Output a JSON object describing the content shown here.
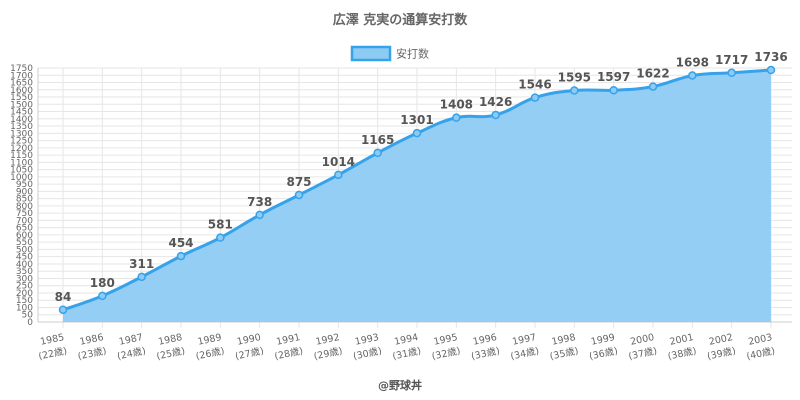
{
  "chart_data": {
    "type": "area",
    "title": "広澤 克実の通算安打数",
    "legend": {
      "position": "top",
      "label": "安打数"
    },
    "series": [
      {
        "name": "安打数",
        "values": [
          84,
          180,
          311,
          454,
          581,
          738,
          875,
          1014,
          1165,
          1301,
          1408,
          1426,
          1546,
          1595,
          1597,
          1622,
          1698,
          1717,
          1736
        ]
      }
    ],
    "categories": [
      "1985",
      "1986",
      "1987",
      "1988",
      "1989",
      "1990",
      "1991",
      "1992",
      "1993",
      "1994",
      "1995",
      "1996",
      "1997",
      "1998",
      "1999",
      "2000",
      "2001",
      "2002",
      "2003"
    ],
    "category_sublabels": [
      "(22歳)",
      "(23歳)",
      "(24歳)",
      "(25歳)",
      "(26歳)",
      "(27歳)",
      "(28歳)",
      "(29歳)",
      "(30歳)",
      "(31歳)",
      "(32歳)",
      "(33歳)",
      "(34歳)",
      "(35歳)",
      "(36歳)",
      "(37歳)",
      "(38歳)",
      "(39歳)",
      "(40歳)"
    ],
    "ylim": [
      0,
      1750
    ],
    "ytick_step": 50,
    "grid": true,
    "colors": {
      "line": "#36a2eb",
      "fill": "#8ecbf3",
      "grid": "#e6e6e6",
      "text": "#666666"
    }
  },
  "footer": {
    "credit": "@野球丼"
  }
}
